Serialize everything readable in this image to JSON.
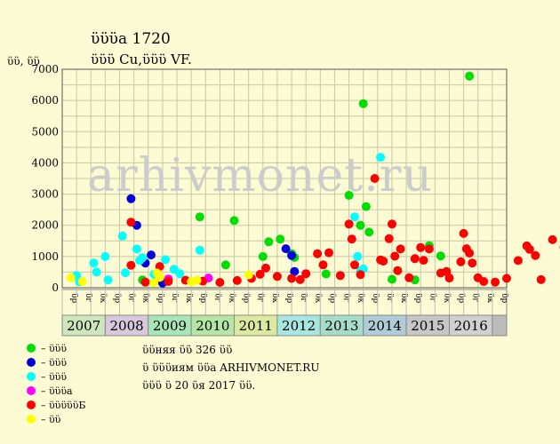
{
  "header": {
    "title": "ϋϋϋа 1720",
    "subtitle": "ϋϋϋ Cu,ϋϋϋ VF."
  },
  "watermark": "arhivmonet.ru",
  "notes": {
    "line1": "ϋϋняя ϋϋ 326 ϋϋ",
    "line2": "ϋ ϋϋϋиям ϋϋа ARHIVMONET.RU",
    "line3": "ϋϋϋ ϋ 20 ϋя 2017 ϋϋ."
  },
  "legend": [
    {
      "label": "– ϋϋϋ",
      "color": "#00dd00"
    },
    {
      "label": "– ϋϋϋ",
      "color": "#0000dd"
    },
    {
      "label": "– ϋϋϋ",
      "color": "#00ffff"
    },
    {
      "label": "– ϋϋϋа",
      "color": "#ff00ff"
    },
    {
      "label": "– ϋϋϋϋϋБ",
      "color": "#ff0000"
    },
    {
      "label": "– ϋϋ",
      "color": "#ffff00"
    }
  ],
  "chart_data": {
    "type": "scatter",
    "ylabel": "ϋϋ, ϋϋ",
    "ylim": [
      0,
      7000
    ],
    "yticks": [
      0,
      1000,
      2000,
      3000,
      4000,
      5000,
      6000,
      7000
    ],
    "grid": true,
    "quarter_labels": [
      "ϋр",
      "ϋг",
      "ϋк",
      "ϋр",
      "ϋг",
      "ϋк",
      "ϋр",
      "ϋг",
      "ϋк",
      "ϋр",
      "ϋг",
      "ϋк",
      "ϋр",
      "ϋг",
      "ϋк",
      "ϋр",
      "ϋг",
      "ϋк",
      "ϋр",
      "ϋг",
      "ϋк",
      "ϋр",
      "ϋг",
      "ϋк",
      "ϋр",
      "ϋг",
      "ϋк",
      "ϋр",
      "ϋг",
      "ϋк",
      "ϋр"
    ],
    "years": [
      {
        "label": "2007",
        "color": "#cde6bc"
      },
      {
        "label": "2008",
        "color": "#d8c8dc"
      },
      {
        "label": "2009",
        "color": "#a8e6b8"
      },
      {
        "label": "2010",
        "color": "#b6e6a6"
      },
      {
        "label": "2011",
        "color": "#dceaa0"
      },
      {
        "label": "2012",
        "color": "#a8e6e2"
      },
      {
        "label": "2013",
        "color": "#a6dcc8"
      },
      {
        "label": "2014",
        "color": "#b0ccd6"
      },
      {
        "label": "2015",
        "color": "#c6c6c6"
      },
      {
        "label": "2016",
        "color": "#d0d0d0"
      },
      {
        "label": "",
        "color": "#bcbcbc"
      }
    ],
    "series": [
      {
        "key": "green",
        "color": "#00dd00",
        "points": [
          [
            2008.15,
            250
          ],
          [
            2009.15,
            2270
          ],
          [
            2009.6,
            730
          ],
          [
            2009.75,
            2150
          ],
          [
            2010.25,
            1000
          ],
          [
            2010.35,
            1470
          ],
          [
            2010.55,
            1560
          ],
          [
            2010.75,
            1090
          ],
          [
            2010.8,
            970
          ],
          [
            2011.35,
            440
          ],
          [
            2011.75,
            2960
          ],
          [
            2011.95,
            2000
          ],
          [
            2012.05,
            2600
          ],
          [
            2012.1,
            1780
          ],
          [
            2012.0,
            5900
          ],
          [
            2012.5,
            270
          ],
          [
            2013.15,
            1350
          ],
          [
            2013.35,
            1020
          ],
          [
            2013.85,
            6780
          ],
          [
            2012.9,
            250
          ]
        ]
      },
      {
        "key": "blue",
        "color": "#0000dd",
        "points": [
          [
            2007.95,
            2850
          ],
          [
            2008.05,
            2000
          ],
          [
            2008.2,
            790
          ],
          [
            2008.3,
            1050
          ],
          [
            2008.4,
            250
          ],
          [
            2008.5,
            150
          ],
          [
            2010.65,
            1250
          ],
          [
            2010.75,
            1030
          ],
          [
            2010.8,
            520
          ]
        ]
      },
      {
        "key": "cyan",
        "color": "#00ffff",
        "points": [
          [
            2007.0,
            390
          ],
          [
            2007.05,
            190
          ],
          [
            2007.3,
            790
          ],
          [
            2007.35,
            500
          ],
          [
            2007.5,
            1000
          ],
          [
            2007.55,
            250
          ],
          [
            2007.8,
            1660
          ],
          [
            2007.85,
            480
          ],
          [
            2008.05,
            1240
          ],
          [
            2008.1,
            870
          ],
          [
            2008.15,
            960
          ],
          [
            2008.35,
            430
          ],
          [
            2008.55,
            900
          ],
          [
            2008.7,
            590
          ],
          [
            2008.8,
            450
          ],
          [
            2009.15,
            1200
          ],
          [
            2011.85,
            2270
          ],
          [
            2011.9,
            1000
          ],
          [
            2011.95,
            540
          ],
          [
            2012.3,
            4180
          ],
          [
            2012.0,
            600
          ]
        ]
      },
      {
        "key": "magenta",
        "color": "#ff00ff",
        "points": [
          [
            2008.6,
            280
          ],
          [
            2009.3,
            310
          ]
        ]
      },
      {
        "key": "red",
        "color": "#ff0000",
        "points": [
          [
            2007.95,
            2100
          ],
          [
            2007.95,
            720
          ],
          [
            2008.2,
            180
          ],
          [
            2008.45,
            680
          ],
          [
            2008.6,
            200
          ],
          [
            2008.9,
            240
          ],
          [
            2009.2,
            210
          ],
          [
            2009.5,
            170
          ],
          [
            2009.8,
            230
          ],
          [
            2010.05,
            300
          ],
          [
            2010.2,
            430
          ],
          [
            2010.3,
            630
          ],
          [
            2010.5,
            360
          ],
          [
            2010.75,
            300
          ],
          [
            2010.9,
            260
          ],
          [
            2011.0,
            450
          ],
          [
            2011.2,
            1090
          ],
          [
            2011.3,
            730
          ],
          [
            2011.4,
            1120
          ],
          [
            2011.6,
            390
          ],
          [
            2011.75,
            2040
          ],
          [
            2011.8,
            1560
          ],
          [
            2011.85,
            730
          ],
          [
            2011.95,
            420
          ],
          [
            2012.2,
            3500
          ],
          [
            2012.3,
            890
          ],
          [
            2012.35,
            850
          ],
          [
            2012.45,
            1570
          ],
          [
            2012.5,
            2040
          ],
          [
            2012.55,
            1010
          ],
          [
            2012.6,
            550
          ],
          [
            2012.65,
            1240
          ],
          [
            2012.8,
            320
          ],
          [
            2012.9,
            930
          ],
          [
            2013.0,
            1290
          ],
          [
            2013.05,
            880
          ],
          [
            2013.15,
            1240
          ],
          [
            2013.35,
            470
          ],
          [
            2013.45,
            520
          ],
          [
            2013.5,
            310
          ],
          [
            2013.7,
            830
          ],
          [
            2013.75,
            1740
          ],
          [
            2013.8,
            1250
          ],
          [
            2013.85,
            1110
          ],
          [
            2013.9,
            790
          ],
          [
            2014.0,
            320
          ],
          [
            2014.1,
            200
          ],
          [
            2014.3,
            180
          ],
          [
            2014.5,
            300
          ],
          [
            2014.7,
            870
          ],
          [
            2014.85,
            1340
          ],
          [
            2014.9,
            1230
          ],
          [
            2015.0,
            1030
          ],
          [
            2015.1,
            260
          ],
          [
            2015.3,
            1540
          ],
          [
            2015.5,
            1300
          ],
          [
            2015.55,
            310
          ],
          [
            2015.7,
            850
          ],
          [
            2015.8,
            310
          ],
          [
            2015.9,
            270
          ],
          [
            2016.05,
            990
          ],
          [
            2016.1,
            330
          ],
          [
            2016.2,
            240
          ],
          [
            2016.4,
            710
          ],
          [
            2016.45,
            520
          ]
        ]
      },
      {
        "key": "yellow",
        "color": "#ffff00",
        "points": [
          [
            2006.9,
            320
          ],
          [
            2007.1,
            200
          ],
          [
            2008.35,
            160
          ],
          [
            2008.4,
            470
          ],
          [
            2008.45,
            330
          ],
          [
            2009.0,
            190
          ],
          [
            2009.1,
            240
          ],
          [
            2010.0,
            410
          ],
          [
            2016.0,
            420
          ],
          [
            2016.4,
            260
          ]
        ]
      }
    ]
  }
}
